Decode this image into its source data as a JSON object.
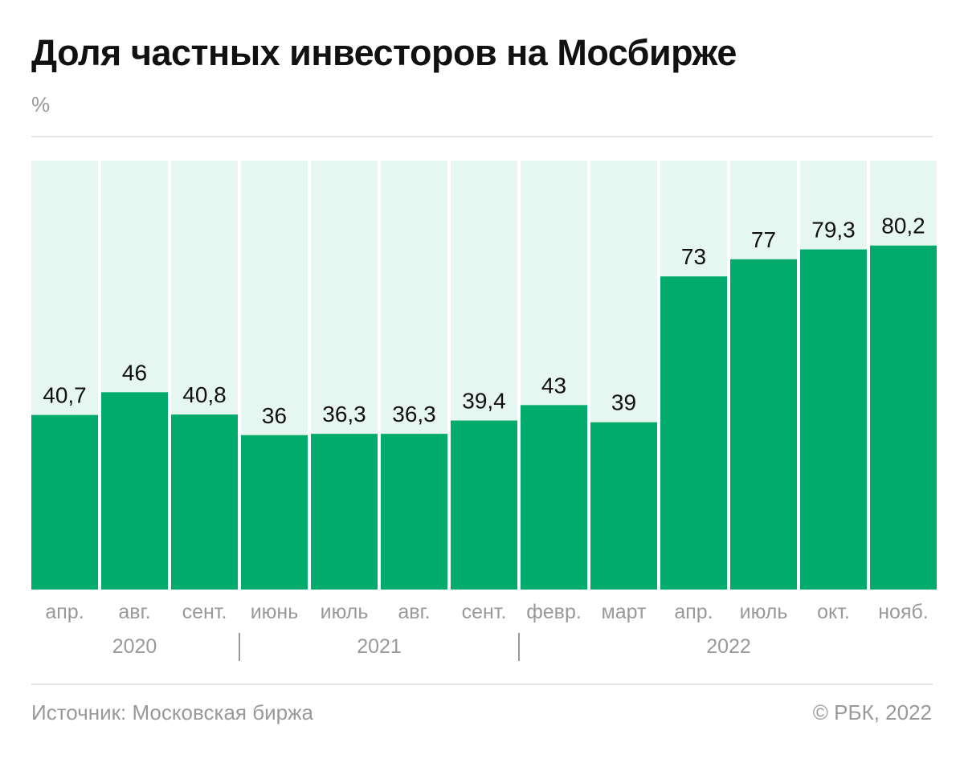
{
  "title": "Доля частных инвесторов на Мосбирже",
  "unit": "%",
  "source": "Источник: Московская биржа",
  "copyright": "© РБК, 2022",
  "colors": {
    "bar": "#00ab6b",
    "background": "#e6f6f0",
    "axis_text": "#999999"
  },
  "chart_data": {
    "type": "bar",
    "title": "Доля частных инвесторов на Мосбирже",
    "ylabel": "%",
    "ylim": [
      0,
      100
    ],
    "grid": false,
    "categories": [
      "апр.",
      "авг.",
      "сент.",
      "июнь",
      "июль",
      "авг.",
      "сент.",
      "февр.",
      "март",
      "апр.",
      "июль",
      "окт.",
      "нояб."
    ],
    "values": [
      40.7,
      46,
      40.8,
      36,
      36.3,
      36.3,
      39.4,
      43,
      39,
      73,
      77,
      79.3,
      80.2
    ],
    "value_labels": [
      "40,7",
      "46",
      "40,8",
      "36",
      "36,3",
      "36,3",
      "39,4",
      "43",
      "39",
      "73",
      "77",
      "79,3",
      "80,2"
    ],
    "year_groups": [
      {
        "label": "2020",
        "start": 0,
        "end": 2
      },
      {
        "label": "2021",
        "start": 3,
        "end": 6
      },
      {
        "label": "2022",
        "start": 7,
        "end": 12
      }
    ]
  }
}
